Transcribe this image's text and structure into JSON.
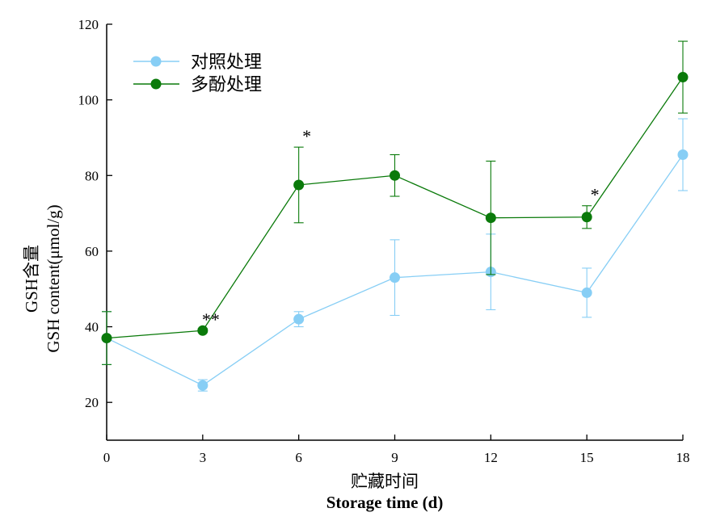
{
  "chart_data": {
    "type": "line",
    "title": "",
    "xlabel_cn": "贮藏时间",
    "xlabel": "Storage time (d)",
    "ylabel_cn": "GSH含量",
    "ylabel": "GSH content(μmol/g)",
    "x": [
      0,
      3,
      6,
      9,
      12,
      15,
      18
    ],
    "xlim": [
      0,
      18
    ],
    "ylim": [
      10,
      120
    ],
    "xticks": [
      "0",
      "3",
      "6",
      "9",
      "12",
      "15",
      "18"
    ],
    "yticks": [
      "20",
      "40",
      "60",
      "80",
      "100",
      "120"
    ],
    "grid": false,
    "legend_position": "top-left",
    "series": [
      {
        "name": "对照处理",
        "color": "#87cef5",
        "values": [
          37,
          24.5,
          42,
          53,
          54.5,
          49,
          85.5
        ],
        "errors": [
          7,
          1.5,
          2,
          10,
          10,
          6.5,
          9.5
        ]
      },
      {
        "name": "多酚处理",
        "color": "#0a7a0a",
        "values": [
          37,
          39,
          77.5,
          80,
          68.8,
          69,
          106
        ],
        "errors": [
          7,
          0.5,
          10,
          5.5,
          15,
          3,
          9.5
        ]
      }
    ],
    "annotations": [
      {
        "text": "**",
        "x": 3,
        "y": 39
      },
      {
        "text": "*",
        "x": 6,
        "y": 87.5
      },
      {
        "text": "*",
        "x": 15,
        "y": 72
      }
    ]
  }
}
